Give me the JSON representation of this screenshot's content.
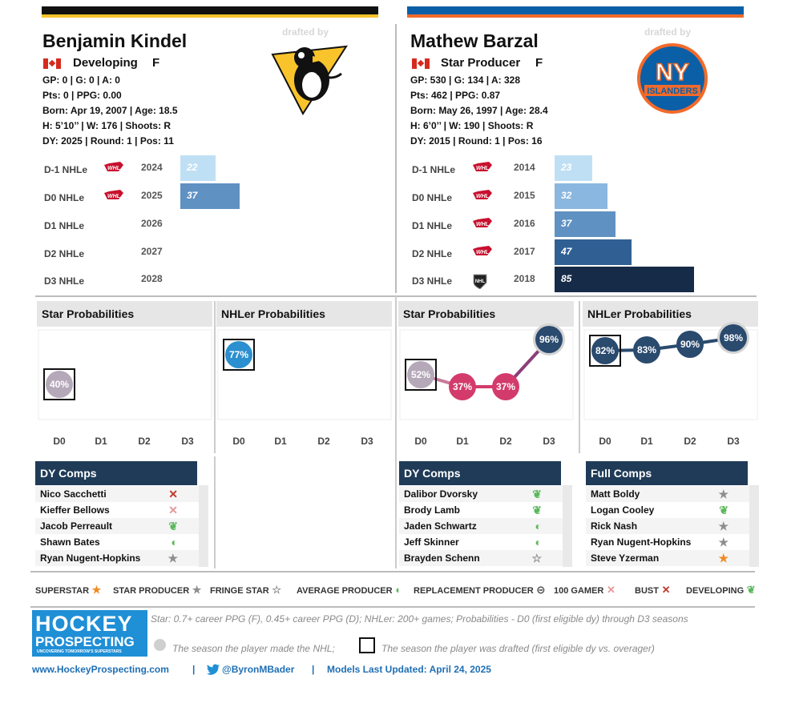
{
  "left": {
    "name": "Benjamin Kindel",
    "drafted_by": "drafted by",
    "team_logo": "pittsburgh-penguins-logo",
    "country": "canada-flag",
    "status": "Developing",
    "position": "F",
    "gp_line": "GP: 0 | G: 0 | A: 0",
    "pts_line": "Pts: 0 | PPG: 0.00",
    "born_line": "Born: Apr 19, 2007 | Age: 18.5",
    "size_line": "H: 5’10’’ | W: 176 | Shoots: R",
    "dy_line": "DY: 2025 | Round: 1 | Pos: 11"
  },
  "right": {
    "name": "Mathew Barzal",
    "drafted_by": "drafted by",
    "team_logo": "new-york-islanders-logo",
    "country": "canada-flag",
    "status": "Star Producer",
    "position": "F",
    "gp_line": "GP: 530 | G: 134 | A: 328",
    "pts_line": "Pts: 462 | PPG: 0.87",
    "born_line": "Born: May 26, 1997 | Age: 28.4",
    "size_line": "H: 6’0’’ | W: 190 | Shoots: R",
    "dy_line": "DY: 2015 | Round: 1 | Pos: 16"
  },
  "chart_data": [
    {
      "type": "bar",
      "panel": "left-nhle",
      "categories": [
        "D-1 NHLe",
        "D0 NHLe",
        "D1 NHLe",
        "D2 NHLe",
        "D3 NHLe"
      ],
      "years": [
        "2024",
        "2025",
        "2026",
        "2027",
        "2028"
      ],
      "leagues": [
        "whl-icon",
        "whl-icon",
        "",
        "",
        ""
      ],
      "values": [
        22,
        37,
        null,
        null,
        null
      ]
    },
    {
      "type": "bar",
      "panel": "right-nhle",
      "categories": [
        "D-1 NHLe",
        "D0 NHLe",
        "D1 NHLe",
        "D2 NHLe",
        "D3 NHLe"
      ],
      "years": [
        "2014",
        "2015",
        "2016",
        "2017",
        "2018"
      ],
      "leagues": [
        "whl-icon",
        "whl-icon",
        "whl-icon",
        "whl-icon",
        "nhl-icon"
      ],
      "values": [
        23,
        32,
        37,
        47,
        85
      ]
    },
    {
      "type": "line",
      "panel": "left-star",
      "title": "Star Probabilities",
      "categories": [
        "D0",
        "D1",
        "D2",
        "D3"
      ],
      "values": [
        40,
        null,
        null,
        null
      ],
      "labels": [
        "40%"
      ],
      "drafted_index": 0,
      "nhl_index": null
    },
    {
      "type": "line",
      "panel": "left-nhler",
      "title": "NHLer Probabilities",
      "categories": [
        "D0",
        "D1",
        "D2",
        "D3"
      ],
      "values": [
        77,
        null,
        null,
        null
      ],
      "labels": [
        "77%"
      ],
      "drafted_index": 0,
      "nhl_index": null
    },
    {
      "type": "line",
      "panel": "right-star",
      "title": "Star Probabilities",
      "categories": [
        "D0",
        "D1",
        "D2",
        "D3"
      ],
      "values": [
        52,
        37,
        37,
        96
      ],
      "labels": [
        "52%",
        "37%",
        "37%",
        "96%"
      ],
      "drafted_index": 0,
      "nhl_index": 3
    },
    {
      "type": "line",
      "panel": "right-nhler",
      "title": "NHLer Probabilities",
      "categories": [
        "D0",
        "D1",
        "D2",
        "D3"
      ],
      "values": [
        82,
        83,
        90,
        98
      ],
      "labels": [
        "82%",
        "83%",
        "90%",
        "98%"
      ],
      "drafted_index": 0,
      "nhl_index": 3
    }
  ],
  "comps": {
    "left_dy": {
      "title": "DY Comps",
      "rows": [
        {
          "name": "Nico Sacchetti",
          "icon": "bust-icon"
        },
        {
          "name": "Kieffer Bellows",
          "icon": "100-gamer-icon"
        },
        {
          "name": "Jacob Perreault",
          "icon": "developing-icon"
        },
        {
          "name": "Shawn Bates",
          "icon": "average-producer-icon"
        },
        {
          "name": "Ryan Nugent-Hopkins",
          "icon": "star-producer-icon"
        }
      ]
    },
    "right_dy": {
      "title": "DY Comps",
      "rows": [
        {
          "name": "Dalibor Dvorsky",
          "icon": "developing-icon"
        },
        {
          "name": "Brody Lamb",
          "icon": "developing-icon"
        },
        {
          "name": "Jaden Schwartz",
          "icon": "average-producer-icon"
        },
        {
          "name": "Jeff Skinner",
          "icon": "average-producer-icon"
        },
        {
          "name": "Brayden Schenn",
          "icon": "fringe-star-icon"
        }
      ]
    },
    "right_full": {
      "title": "Full Comps",
      "rows": [
        {
          "name": "Matt Boldy",
          "icon": "star-producer-icon"
        },
        {
          "name": "Logan Cooley",
          "icon": "developing-icon"
        },
        {
          "name": "Rick Nash",
          "icon": "star-producer-icon"
        },
        {
          "name": "Ryan Nugent-Hopkins",
          "icon": "star-producer-icon"
        },
        {
          "name": "Steve Yzerman",
          "icon": "superstar-icon"
        }
      ]
    }
  },
  "legend": [
    {
      "label": "SUPERSTAR",
      "icon": "superstar-icon"
    },
    {
      "label": "STAR PRODUCER",
      "icon": "star-producer-icon"
    },
    {
      "label": "FRINGE STAR",
      "icon": "fringe-star-icon"
    },
    {
      "label": "AVERAGE PRODUCER",
      "icon": "average-producer-icon"
    },
    {
      "label": "REPLACEMENT PRODUCER",
      "icon": "replacement-producer-icon"
    },
    {
      "label": "100 GAMER",
      "icon": "100-gamer-icon"
    },
    {
      "label": "BUST",
      "icon": "bust-icon"
    },
    {
      "label": "DEVELOPING",
      "icon": "developing-icon"
    }
  ],
  "footer": {
    "logo_line1": "HOCKEY",
    "logo_line2": "PROSPECTING",
    "logo_tagline": "UNCOVERING TOMORROW'S SUPERSTARS",
    "definition": "Star: 0.7+ career PPG (F), 0.45+ career PPG (D); NHLer: 200+ games; Probabilities - D0 (first eligible dy) through D3 seasons",
    "nhl_note": "The season the player made the NHL;",
    "draft_note": "The season the player was drafted (first eligible dy vs. overager)",
    "website": "www.HockeyProspecting.com",
    "sep": "|",
    "twitter": "@ByronMBader",
    "updated": "Models Last Updated: April 24, 2025"
  },
  "colors": {
    "penguins_gold": "#f9c32b",
    "islanders_blue": "#0b5fa7",
    "islanders_orange": "#f26a2a",
    "comp_header": "#1f3b57",
    "star_pink": "#d33b6c",
    "nhler_navy": "#2a4a6e"
  }
}
